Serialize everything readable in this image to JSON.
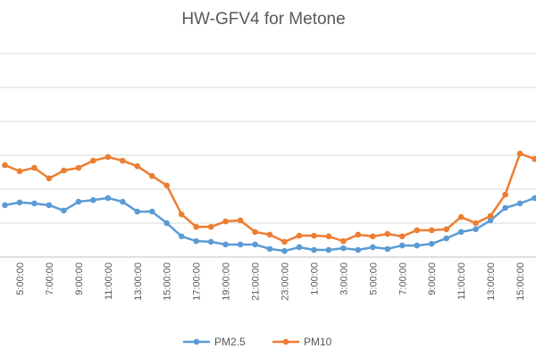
{
  "chart_data": {
    "type": "line",
    "title": "HW-GFV4 for Metone",
    "categories": [
      null,
      "5:00:00",
      null,
      "7:00:00",
      null,
      "9:00:00",
      null,
      "11:00:00",
      null,
      "13:00:00",
      null,
      "15:00:00",
      null,
      "17:00:00",
      null,
      "19:00:00",
      null,
      "21:00:00",
      null,
      "23:00:00",
      null,
      "1:00:00",
      null,
      "3:00:00",
      null,
      "5:00:00",
      null,
      "7:00:00",
      null,
      "9:00:00",
      null,
      "11:00:00",
      null,
      "13:00:00",
      null,
      "15:00:00",
      null
    ],
    "series": [
      {
        "name": "PM2.5",
        "color": "#5b9bd5",
        "values": [
          15.3,
          16.1,
          15.8,
          15.3,
          13.7,
          16.3,
          16.8,
          17.4,
          16.3,
          13.4,
          13.4,
          10,
          6.1,
          4.7,
          4.5,
          3.7,
          3.7,
          3.7,
          2.4,
          1.8,
          2.9,
          2.1,
          2.1,
          2.6,
          2.1,
          2.9,
          2.4,
          3.4,
          3.4,
          3.9,
          5.5,
          7.4,
          8.2,
          10.8,
          14.5,
          15.8,
          17.4
        ]
      },
      {
        "name": "PM10",
        "color": "#ed7d31",
        "values": [
          27.1,
          25.3,
          26.3,
          23.2,
          25.5,
          26.3,
          28.4,
          29.5,
          28.4,
          26.8,
          23.9,
          21.1,
          12.6,
          8.9,
          8.9,
          10.5,
          10.8,
          7.4,
          6.6,
          4.5,
          6.3,
          6.3,
          6.1,
          4.7,
          6.6,
          6.1,
          6.8,
          6.1,
          7.9,
          7.9,
          8.2,
          11.8,
          10,
          12.1,
          18.4,
          30.5,
          28.9
        ]
      }
    ],
    "ylim": [
      0,
      60
    ],
    "yticks": [
      0,
      10,
      20,
      30,
      40,
      50,
      60
    ],
    "grid": true,
    "legend": "bottom"
  }
}
